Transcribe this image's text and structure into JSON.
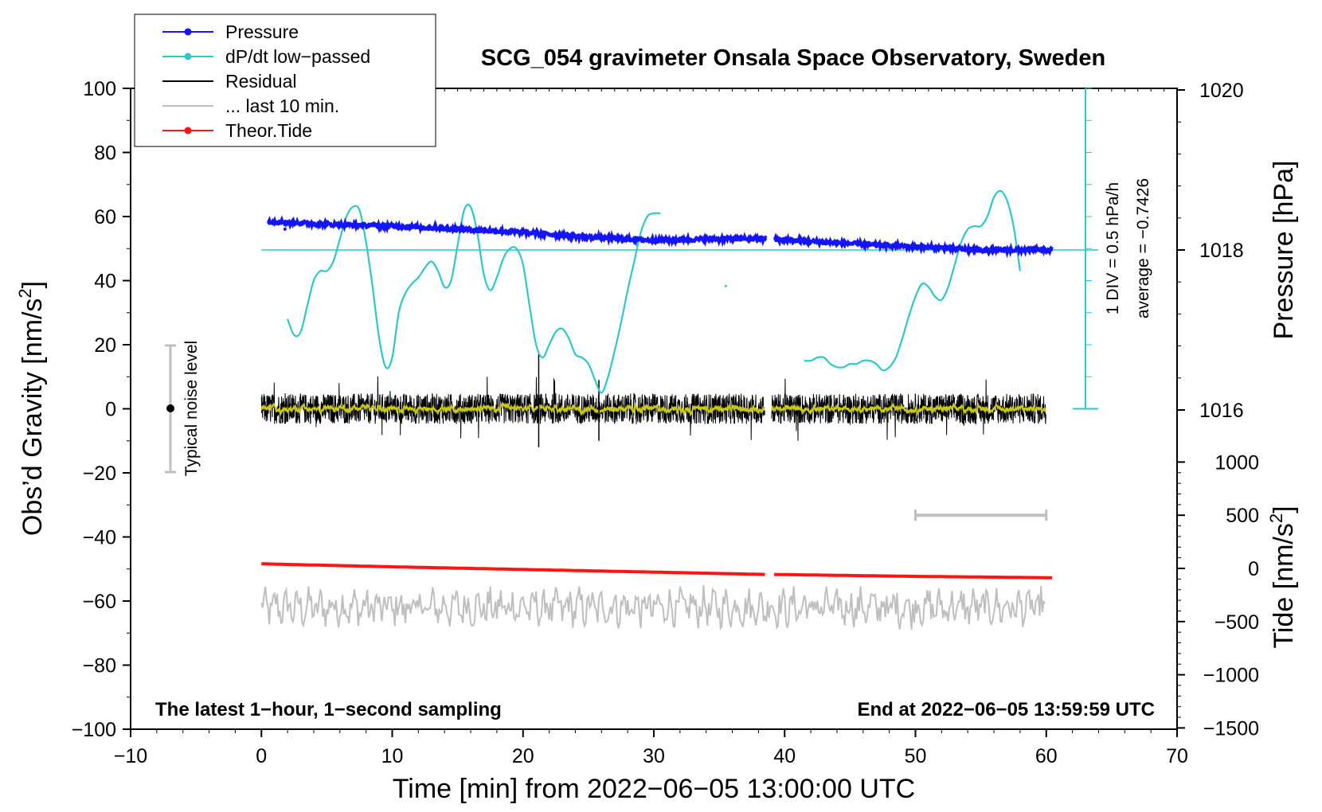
{
  "chart_data": {
    "type": "line",
    "title": "SCG_054 gravimeter Onsala Space Observatory, Sweden",
    "xlabel": "Time [min] from 2022−06−05 13:00:00 UTC",
    "ylabel": "Obs’d Gravity [nm/s",
    "ylabel_sup": "2",
    "ylabel_close": "]",
    "xlim": [
      -10,
      70
    ],
    "ylim": [
      -100,
      100
    ],
    "x_ticks": [
      "−10",
      "0",
      "10",
      "20",
      "30",
      "40",
      "50",
      "60",
      "70"
    ],
    "y_ticks": [
      "100",
      "80",
      "60",
      "40",
      "20",
      "0",
      "−20",
      "−40",
      "−60",
      "−80",
      "−100"
    ],
    "pressure_axis": {
      "label": "Pressure [hPa]",
      "ticks": [
        "1020",
        "1018",
        "1016"
      ],
      "ref_line_hpa": 1018
    },
    "tide_axis": {
      "label_pre": "Tide [nm/s",
      "label_sup": "2",
      "label_close": "]",
      "ticks": [
        "1000",
        "500",
        "0",
        "−500",
        "−1000",
        "−1500"
      ],
      "ylim": [
        -1500,
        1000
      ]
    },
    "legend": [
      {
        "label": "Pressure",
        "color": "#1414ff",
        "marker": true
      },
      {
        "label": "dP/dt low−passed",
        "color": "#2ec8c8",
        "marker": true
      },
      {
        "label": "Residual",
        "color": "#000000",
        "marker": false
      },
      {
        "label": "... last 10 min.",
        "color": "#bfbfbf",
        "marker": false
      },
      {
        "label": "Theor.Tide",
        "color": "#ff1414",
        "marker": true
      }
    ],
    "annotations": {
      "noise": "Typical noise level",
      "div": "1 DIV = 0.5 hPa/h",
      "average": "average = −0.7426",
      "bottom_left": "The latest 1−hour, 1−second sampling",
      "bottom_right": "End at 2022−06−05 13:59:59 UTC"
    },
    "series": [
      {
        "name": "Pressure",
        "axis": "pressure_hPa",
        "segments": [
          {
            "x": [
              0.5,
              5,
              10,
              15,
              20,
              25,
              30,
              35,
              38.6
            ],
            "y": [
              1018.36,
              1018.32,
              1018.3,
              1018.26,
              1018.22,
              1018.16,
              1018.12,
              1018.14,
              1018.14
            ]
          },
          {
            "x": [
              39.2,
              45,
              50,
              55,
              60.5
            ],
            "y": [
              1018.13,
              1018.08,
              1018.04,
              1018.0,
              1018.0
            ]
          }
        ]
      },
      {
        "name": "dP/dt low-passed",
        "axis": "gravity_units",
        "segments": [
          {
            "x": [
              2,
              2.5,
              3,
              3.5,
              4,
              4.5,
              5,
              5.5,
              6,
              6.5,
              7,
              7.5,
              8,
              8.5,
              9,
              9.5,
              10,
              10.5,
              11,
              11.5,
              12,
              12.5,
              13,
              13.5,
              14,
              14.5,
              15,
              15.5,
              16,
              16.5,
              17,
              17.5,
              18,
              18.5,
              19,
              19.5,
              20,
              20.5,
              21,
              21.5,
              22,
              22.5,
              23,
              23.5,
              24,
              24.5,
              25,
              25.5,
              26,
              26.5,
              27,
              27.5,
              28,
              28.5,
              29,
              29.5,
              30,
              30.5
            ],
            "y": [
              28,
              23,
              24,
              32,
              40,
              43,
              43,
              46,
              53,
              60,
              63,
              62,
              52,
              38,
              22,
              13,
              16,
              30,
              36,
              39,
              41,
              44,
              46,
              43,
              38,
              40,
              51,
              62,
              63,
              55,
              42,
              37,
              41,
              47,
              50,
              50,
              45,
              32,
              20,
              16,
              20,
              24,
              25,
              22,
              17,
              16,
              14,
              9,
              5,
              10,
              18,
              27,
              37,
              46,
              55,
              60,
              61,
              61
            ]
          },
          {
            "x": [
              41.5,
              42,
              42.5,
              43,
              43.5,
              44,
              44.5,
              45,
              45.5,
              46,
              46.5,
              47,
              47.5,
              48,
              48.5,
              49,
              49.5,
              50,
              50.5,
              51,
              51.5,
              52,
              52.5,
              53,
              53.5,
              54,
              54.5,
              55,
              55.5,
              56,
              56.5,
              57,
              57.5,
              58
            ],
            "y": [
              15,
              15,
              16,
              16,
              14,
              13,
              13,
              14,
              14,
              15,
              15,
              14,
              12,
              13,
              16,
              22,
              29,
              35,
              39,
              38,
              35,
              34,
              38,
              45,
              52,
              56,
              57,
              57,
              60,
              66,
              68,
              65,
              57,
              43
            ]
          }
        ]
      },
      {
        "name": "Residual",
        "axis": "gravity_units",
        "description": "1-second residual, noise about ±5 nm/s2 around 0, spikes to about ±12",
        "segments": [
          {
            "x": [
              0,
              38.5
            ],
            "y": [
              0,
              0
            ]
          },
          {
            "x": [
              39,
              60
            ],
            "y": [
              0,
              0
            ]
          }
        ]
      },
      {
        "name": "Residual smoothed",
        "axis": "gravity_units",
        "color": "#c8c814",
        "description": "smoothed residual around 0",
        "segments": [
          {
            "x": [
              0,
              38.5
            ],
            "y": [
              0,
              0
            ]
          },
          {
            "x": [
              39,
              60
            ],
            "y": [
              0,
              0
            ]
          }
        ]
      },
      {
        "name": "... last 10 min.",
        "axis": "gravity_units",
        "description": "noise level trace around −62, amplitude about ±7",
        "segments": [
          {
            "x": [
              0,
              60
            ],
            "y": [
              -62,
              -62
            ]
          }
        ]
      },
      {
        "name": "Theor.Tide",
        "axis": "tide_nm_s2",
        "segments": [
          {
            "x": [
              0,
              10,
              20,
              30,
              38.6
            ],
            "y": [
              43,
              15,
              -10,
              -35,
              -57
            ]
          },
          {
            "x": [
              39.2,
              50,
              60.5
            ],
            "y": [
              -57,
              -75,
              -88
            ]
          }
        ]
      },
      {
        "name": "Last 10 min marker",
        "axis": "tide_nm_s2",
        "x": [
          50,
          60
        ],
        "y": [
          500,
          500
        ]
      }
    ]
  }
}
